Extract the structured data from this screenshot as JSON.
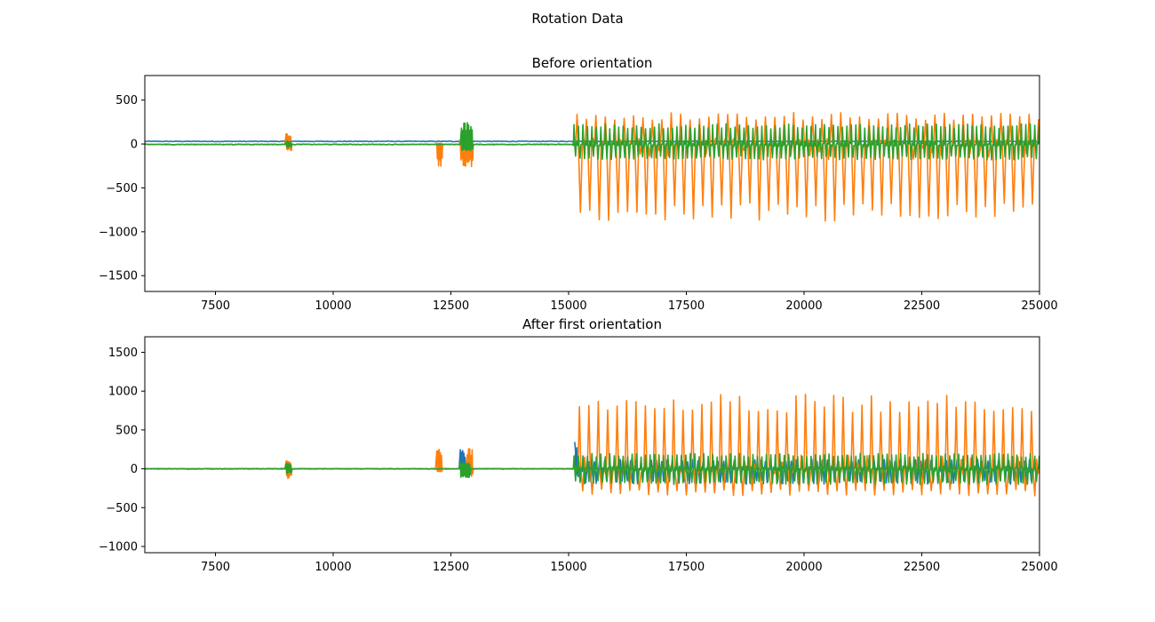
{
  "figure": {
    "suptitle": "Rotation Data"
  },
  "chart_data": [
    {
      "type": "line",
      "title": "Before orientation",
      "xlabel": "",
      "ylabel": "",
      "xlim": [
        6000,
        25000
      ],
      "ylim": [
        -1680,
        780
      ],
      "x_ticks": [
        7500,
        10000,
        12500,
        15000,
        17500,
        20000,
        22500,
        25000
      ],
      "x_tick_labels": [
        "7500",
        "10000",
        "12500",
        "15000",
        "17500",
        "20000",
        "22500",
        "25000"
      ],
      "y_ticks": [
        500,
        0,
        -500,
        -1000,
        -1500
      ],
      "y_tick_labels": [
        "500",
        "0",
        "−500",
        "−1000",
        "−1500"
      ],
      "grid": false,
      "series": [
        {
          "color": "#1f77b4",
          "baseline": 30,
          "bursts": [],
          "oscillation": null
        },
        {
          "color": "#ff7f0e",
          "baseline": -5,
          "bursts": [
            {
              "x0": 8980,
              "x1": 9120,
              "hi": 130,
              "lo": -80
            },
            {
              "x0": 12200,
              "x1": 12300,
              "hi": 10,
              "lo": -260
            },
            {
              "x0": 12700,
              "x1": 12950,
              "hi": 60,
              "lo": -260
            }
          ],
          "oscillation": {
            "start": 15150,
            "end": 25000,
            "period": 200,
            "hi": 360,
            "lo": -880
          }
        },
        {
          "color": "#2ca02c",
          "baseline": -5,
          "bursts": [
            {
              "x0": 8980,
              "x1": 9120,
              "hi": 40,
              "lo": -40
            },
            {
              "x0": 12720,
              "x1": 12950,
              "hi": 250,
              "lo": -80
            }
          ],
          "oscillation": {
            "start": 15100,
            "end": 25000,
            "period": 95,
            "hi": 230,
            "lo": -180
          }
        }
      ]
    },
    {
      "type": "line",
      "title": "After first orientation",
      "xlabel": "",
      "ylabel": "",
      "xlim": [
        6000,
        25000
      ],
      "ylim": [
        -1080,
        1700
      ],
      "x_ticks": [
        7500,
        10000,
        12500,
        15000,
        17500,
        20000,
        22500,
        25000
      ],
      "x_tick_labels": [
        "7500",
        "10000",
        "12500",
        "15000",
        "17500",
        "20000",
        "22500",
        "25000"
      ],
      "y_ticks": [
        1500,
        1000,
        500,
        0,
        -500,
        -1000
      ],
      "y_tick_labels": [
        "1500",
        "1000",
        "500",
        "0",
        "−500",
        "−1000"
      ],
      "grid": false,
      "series": [
        {
          "color": "#1f77b4",
          "baseline": 0,
          "bursts": [
            {
              "x0": 12700,
              "x1": 12800,
              "hi": 250,
              "lo": -60
            },
            {
              "x0": 15130,
              "x1": 15200,
              "hi": 340,
              "lo": -100
            }
          ],
          "oscillation": {
            "start": 15200,
            "end": 25000,
            "period": 110,
            "hi": 120,
            "lo": -200
          }
        },
        {
          "color": "#ff7f0e",
          "baseline": 0,
          "bursts": [
            {
              "x0": 8980,
              "x1": 9120,
              "hi": 100,
              "lo": -130
            },
            {
              "x0": 12200,
              "x1": 12300,
              "hi": 260,
              "lo": -40
            },
            {
              "x0": 12850,
              "x1": 12950,
              "hi": 260,
              "lo": -100
            }
          ],
          "oscillation": {
            "start": 15200,
            "end": 25000,
            "period": 200,
            "hi": 960,
            "lo": -350
          }
        },
        {
          "color": "#2ca02c",
          "baseline": 0,
          "bursts": [
            {
              "x0": 8980,
              "x1": 9120,
              "hi": 70,
              "lo": -60
            },
            {
              "x0": 12700,
              "x1": 12900,
              "hi": 80,
              "lo": -120
            }
          ],
          "oscillation": {
            "start": 15100,
            "end": 25000,
            "period": 95,
            "hi": 200,
            "lo": -200
          }
        }
      ]
    }
  ]
}
